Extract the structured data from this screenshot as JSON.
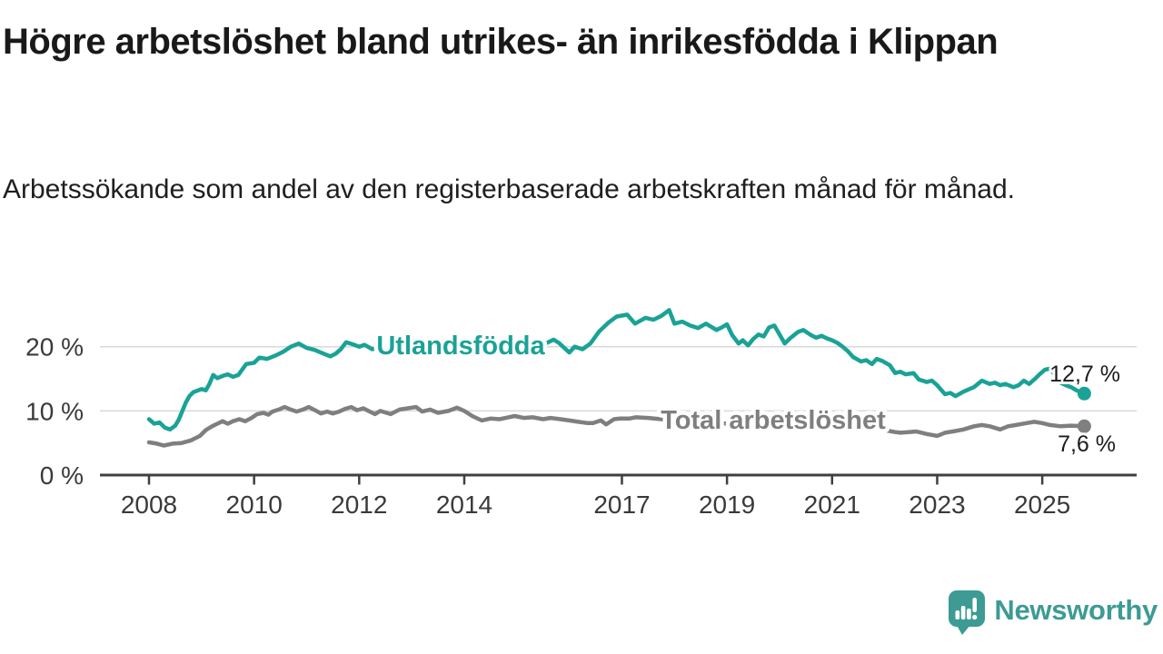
{
  "header": {
    "title": "Högre arbetslöshet bland utrikes- än inrikesfödda i Klippan",
    "subtitle": "Arbetssökande som andel av den registerbaserade arbetskraften månad för månad."
  },
  "branding": {
    "wordmark": "Newsworthy",
    "logo_icon": "newsworthy-chart-bubble-icon",
    "color": "#3d9b94"
  },
  "chart_data": {
    "type": "line",
    "x_unit": "year (monthly series)",
    "y_unit": "percent of registered labour force",
    "xlim": [
      2007.05,
      2026.8
    ],
    "ylim": [
      0,
      26.5
    ],
    "grid": "horizontal",
    "colors": {
      "grid": "#d9d9d9",
      "axis": "#3f3f3f",
      "tick_label": "#3a3a3a",
      "end_label": "#1c1c1c"
    },
    "yticks": [
      {
        "value": 0,
        "label": "0 %"
      },
      {
        "value": 10,
        "label": "10 %"
      },
      {
        "value": 20,
        "label": "20 %"
      }
    ],
    "xticks": [
      {
        "value": 2008,
        "label": "2008"
      },
      {
        "value": 2010,
        "label": "2010"
      },
      {
        "value": 2012,
        "label": "2012"
      },
      {
        "value": 2014,
        "label": "2014"
      },
      {
        "value": 2017,
        "label": "2017"
      },
      {
        "value": 2019,
        "label": "2019"
      },
      {
        "value": 2021,
        "label": "2021"
      },
      {
        "value": 2023,
        "label": "2023"
      },
      {
        "value": 2025,
        "label": "2025"
      }
    ],
    "series": [
      {
        "id": "utlandsfodda",
        "name": "Utlandsfödda",
        "color": "#1aa296",
        "end_label": "12,7 %",
        "end_value": 12.7,
        "points": [
          [
            2008.0,
            8.7
          ],
          [
            2008.1,
            8.0
          ],
          [
            2008.2,
            8.2
          ],
          [
            2008.3,
            7.4
          ],
          [
            2008.4,
            7.1
          ],
          [
            2008.5,
            7.7
          ],
          [
            2008.57,
            8.7
          ],
          [
            2008.63,
            9.9
          ],
          [
            2008.7,
            11.3
          ],
          [
            2008.77,
            12.3
          ],
          [
            2008.84,
            12.9
          ],
          [
            2009.0,
            13.4
          ],
          [
            2009.08,
            13.2
          ],
          [
            2009.15,
            14.2
          ],
          [
            2009.22,
            15.6
          ],
          [
            2009.3,
            15.1
          ],
          [
            2009.42,
            15.5
          ],
          [
            2009.5,
            15.7
          ],
          [
            2009.6,
            15.3
          ],
          [
            2009.7,
            15.6
          ],
          [
            2009.85,
            17.3
          ],
          [
            2010.0,
            17.5
          ],
          [
            2010.1,
            18.3
          ],
          [
            2010.25,
            18.1
          ],
          [
            2010.4,
            18.6
          ],
          [
            2010.55,
            19.2
          ],
          [
            2010.7,
            20.0
          ],
          [
            2010.85,
            20.5
          ],
          [
            2011.0,
            19.8
          ],
          [
            2011.15,
            19.5
          ],
          [
            2011.3,
            19.0
          ],
          [
            2011.45,
            18.5
          ],
          [
            2011.55,
            18.9
          ],
          [
            2011.65,
            19.6
          ],
          [
            2011.75,
            20.7
          ],
          [
            2011.87,
            20.4
          ],
          [
            2012.0,
            20.0
          ],
          [
            2012.1,
            20.3
          ],
          [
            2012.25,
            19.6
          ],
          [
            2012.5,
            20.1
          ],
          [
            2012.75,
            19.7
          ],
          [
            2013.0,
            20.0
          ],
          [
            2013.25,
            19.6
          ],
          [
            2013.5,
            19.9
          ],
          [
            2013.75,
            20.2
          ],
          [
            2014.0,
            19.8
          ],
          [
            2014.25,
            20.0
          ],
          [
            2014.5,
            19.7
          ],
          [
            2014.75,
            19.9
          ],
          [
            2015.0,
            20.1
          ],
          [
            2015.25,
            19.8
          ],
          [
            2015.5,
            20.3
          ],
          [
            2015.7,
            21.1
          ],
          [
            2015.8,
            20.6
          ],
          [
            2016.0,
            19.1
          ],
          [
            2016.1,
            20.0
          ],
          [
            2016.25,
            19.6
          ],
          [
            2016.4,
            20.5
          ],
          [
            2016.57,
            22.4
          ],
          [
            2016.75,
            23.8
          ],
          [
            2016.9,
            24.7
          ],
          [
            2017.1,
            25.0
          ],
          [
            2017.25,
            23.6
          ],
          [
            2017.45,
            24.5
          ],
          [
            2017.6,
            24.2
          ],
          [
            2017.75,
            24.8
          ],
          [
            2017.9,
            25.7
          ],
          [
            2018.0,
            23.6
          ],
          [
            2018.15,
            23.9
          ],
          [
            2018.3,
            23.3
          ],
          [
            2018.45,
            22.9
          ],
          [
            2018.6,
            23.6
          ],
          [
            2018.8,
            22.6
          ],
          [
            2018.9,
            23.0
          ],
          [
            2019.0,
            23.5
          ],
          [
            2019.1,
            21.8
          ],
          [
            2019.22,
            20.5
          ],
          [
            2019.3,
            21.0
          ],
          [
            2019.4,
            20.2
          ],
          [
            2019.5,
            21.2
          ],
          [
            2019.6,
            21.9
          ],
          [
            2019.7,
            21.6
          ],
          [
            2019.8,
            23.0
          ],
          [
            2019.9,
            23.3
          ],
          [
            2020.0,
            21.9
          ],
          [
            2020.1,
            20.5
          ],
          [
            2020.2,
            21.3
          ],
          [
            2020.35,
            22.3
          ],
          [
            2020.45,
            22.6
          ],
          [
            2020.6,
            21.8
          ],
          [
            2020.7,
            21.4
          ],
          [
            2020.8,
            21.7
          ],
          [
            2020.9,
            21.3
          ],
          [
            2021.0,
            21.0
          ],
          [
            2021.1,
            20.6
          ],
          [
            2021.2,
            20.0
          ],
          [
            2021.3,
            19.3
          ],
          [
            2021.4,
            18.4
          ],
          [
            2021.55,
            17.7
          ],
          [
            2021.65,
            17.9
          ],
          [
            2021.76,
            17.3
          ],
          [
            2021.85,
            18.1
          ],
          [
            2021.95,
            17.8
          ],
          [
            2022.1,
            17.1
          ],
          [
            2022.2,
            15.9
          ],
          [
            2022.3,
            16.1
          ],
          [
            2022.4,
            15.7
          ],
          [
            2022.55,
            15.9
          ],
          [
            2022.65,
            14.9
          ],
          [
            2022.8,
            14.5
          ],
          [
            2022.9,
            14.7
          ],
          [
            2023.0,
            14.0
          ],
          [
            2023.15,
            12.6
          ],
          [
            2023.25,
            12.8
          ],
          [
            2023.35,
            12.3
          ],
          [
            2023.5,
            13.0
          ],
          [
            2023.7,
            13.7
          ],
          [
            2023.85,
            14.7
          ],
          [
            2024.0,
            14.2
          ],
          [
            2024.1,
            14.4
          ],
          [
            2024.2,
            14.0
          ],
          [
            2024.3,
            14.2
          ],
          [
            2024.45,
            13.7
          ],
          [
            2024.55,
            14.0
          ],
          [
            2024.65,
            14.7
          ],
          [
            2024.75,
            14.2
          ],
          [
            2024.85,
            14.9
          ],
          [
            2024.95,
            15.7
          ],
          [
            2025.05,
            16.4
          ],
          [
            2025.15,
            16.6
          ],
          [
            2025.25,
            15.5
          ],
          [
            2025.35,
            14.4
          ],
          [
            2025.45,
            14.0
          ],
          [
            2025.55,
            13.7
          ],
          [
            2025.65,
            13.2
          ],
          [
            2025.8,
            12.7
          ]
        ]
      },
      {
        "id": "total-arbetsloshet",
        "name": "Total arbetslöshet",
        "color": "#7f7f7f",
        "end_label": "7,6 %",
        "end_value": 7.6,
        "points": [
          [
            2008.0,
            5.1
          ],
          [
            2008.15,
            4.9
          ],
          [
            2008.28,
            4.6
          ],
          [
            2008.45,
            4.9
          ],
          [
            2008.62,
            5.0
          ],
          [
            2008.8,
            5.4
          ],
          [
            2008.97,
            6.1
          ],
          [
            2009.08,
            7.0
          ],
          [
            2009.2,
            7.6
          ],
          [
            2009.3,
            8.0
          ],
          [
            2009.4,
            8.4
          ],
          [
            2009.5,
            8.0
          ],
          [
            2009.6,
            8.4
          ],
          [
            2009.72,
            8.7
          ],
          [
            2009.83,
            8.4
          ],
          [
            2009.95,
            8.9
          ],
          [
            2010.06,
            9.5
          ],
          [
            2010.18,
            9.7
          ],
          [
            2010.27,
            9.4
          ],
          [
            2010.35,
            9.9
          ],
          [
            2010.47,
            10.2
          ],
          [
            2010.58,
            10.6
          ],
          [
            2010.7,
            10.2
          ],
          [
            2010.81,
            9.9
          ],
          [
            2010.93,
            10.2
          ],
          [
            2011.04,
            10.6
          ],
          [
            2011.16,
            10.1
          ],
          [
            2011.27,
            9.6
          ],
          [
            2011.39,
            9.9
          ],
          [
            2011.5,
            9.6
          ],
          [
            2011.62,
            9.9
          ],
          [
            2011.73,
            10.3
          ],
          [
            2011.85,
            10.6
          ],
          [
            2011.96,
            10.1
          ],
          [
            2012.08,
            10.4
          ],
          [
            2012.2,
            9.9
          ],
          [
            2012.3,
            9.5
          ],
          [
            2012.4,
            10.0
          ],
          [
            2012.6,
            9.5
          ],
          [
            2012.77,
            10.2
          ],
          [
            2013.0,
            10.5
          ],
          [
            2013.08,
            10.6
          ],
          [
            2013.2,
            9.9
          ],
          [
            2013.35,
            10.2
          ],
          [
            2013.5,
            9.7
          ],
          [
            2013.7,
            10.0
          ],
          [
            2013.86,
            10.5
          ],
          [
            2014.0,
            10.0
          ],
          [
            2014.15,
            9.2
          ],
          [
            2014.33,
            8.5
          ],
          [
            2014.5,
            8.8
          ],
          [
            2014.67,
            8.7
          ],
          [
            2014.84,
            9.0
          ],
          [
            2014.96,
            9.2
          ],
          [
            2015.13,
            8.9
          ],
          [
            2015.3,
            9.0
          ],
          [
            2015.5,
            8.7
          ],
          [
            2015.64,
            8.9
          ],
          [
            2015.83,
            8.7
          ],
          [
            2016.0,
            8.5
          ],
          [
            2016.17,
            8.3
          ],
          [
            2016.35,
            8.1
          ],
          [
            2016.45,
            8.1
          ],
          [
            2016.6,
            8.5
          ],
          [
            2016.7,
            7.9
          ],
          [
            2016.85,
            8.7
          ],
          [
            2016.97,
            8.8
          ],
          [
            2017.14,
            8.8
          ],
          [
            2017.26,
            9.0
          ],
          [
            2017.5,
            8.9
          ],
          [
            2017.75,
            8.7
          ],
          [
            2018.0,
            8.6
          ],
          [
            2018.25,
            8.4
          ],
          [
            2018.5,
            8.3
          ],
          [
            2018.75,
            8.2
          ],
          [
            2019.0,
            8.0
          ],
          [
            2019.25,
            7.9
          ],
          [
            2019.5,
            7.8
          ],
          [
            2019.75,
            7.9
          ],
          [
            2020.0,
            8.2
          ],
          [
            2020.3,
            9.0
          ],
          [
            2020.5,
            9.3
          ],
          [
            2020.75,
            9.1
          ],
          [
            2021.0,
            8.7
          ],
          [
            2021.25,
            8.3
          ],
          [
            2021.5,
            7.9
          ],
          [
            2021.75,
            7.4
          ],
          [
            2022.0,
            7.0
          ],
          [
            2022.2,
            6.7
          ],
          [
            2022.3,
            6.6
          ],
          [
            2022.45,
            6.7
          ],
          [
            2022.6,
            6.8
          ],
          [
            2022.8,
            6.4
          ],
          [
            2023.0,
            6.1
          ],
          [
            2023.15,
            6.6
          ],
          [
            2023.3,
            6.8
          ],
          [
            2023.5,
            7.1
          ],
          [
            2023.7,
            7.6
          ],
          [
            2023.85,
            7.8
          ],
          [
            2024.0,
            7.6
          ],
          [
            2024.2,
            7.1
          ],
          [
            2024.35,
            7.6
          ],
          [
            2024.5,
            7.8
          ],
          [
            2024.7,
            8.1
          ],
          [
            2024.85,
            8.3
          ],
          [
            2025.0,
            8.1
          ],
          [
            2025.15,
            7.8
          ],
          [
            2025.35,
            7.6
          ],
          [
            2025.55,
            7.7
          ],
          [
            2025.8,
            7.6
          ]
        ]
      }
    ]
  }
}
